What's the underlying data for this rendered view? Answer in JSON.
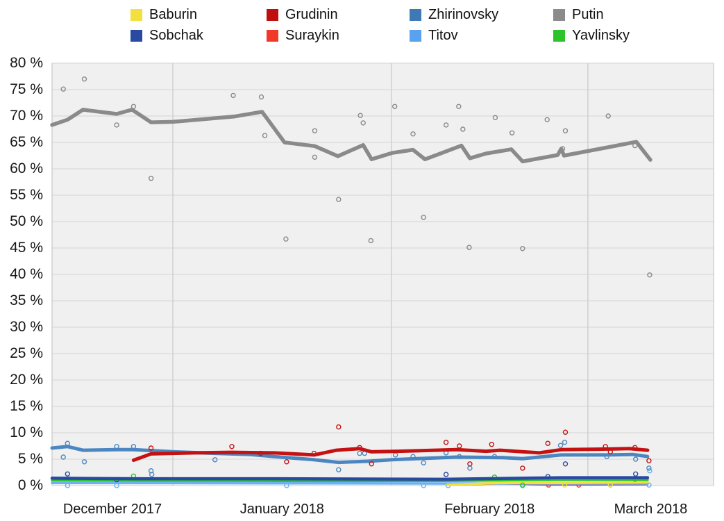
{
  "legend": {
    "items": [
      {
        "label": "Baburin",
        "color": "#f3e03f"
      },
      {
        "label": "Grudinin",
        "color": "#c00d0d"
      },
      {
        "label": "Zhirinovsky",
        "color": "#3c79b5"
      },
      {
        "label": "Putin",
        "color": "#8b8b8b"
      },
      {
        "label": "Sobchak",
        "color": "#2a4aa2"
      },
      {
        "label": "Suraykin",
        "color": "#f03928"
      },
      {
        "label": "Titov",
        "color": "#58a2ef"
      },
      {
        "label": "Yavlinsky",
        "color": "#2cc32c"
      }
    ]
  },
  "chart_data": {
    "type": "scatter",
    "title": "",
    "x_unit": "days from mid-December 2017 to the March 2018 election",
    "x_range_days": [
      0,
      94.2
    ],
    "month_boundary_days": [
      17.2,
      48.3,
      76.3
    ],
    "x_tick_labels": [
      "December 2017",
      "January 2018",
      "February 2018",
      "March 2018"
    ],
    "ylim": [
      0,
      80
    ],
    "y_tick_step": 5,
    "y_tick_labels": [
      "0 %",
      "5 %",
      "10 %",
      "15 %",
      "20 %",
      "25 %",
      "30 %",
      "35 %",
      "40 %",
      "45 %",
      "50 %",
      "55 %",
      "60 %",
      "65 %",
      "70 %",
      "75 %",
      "80 %"
    ],
    "grid": true,
    "legend_position": "top",
    "colors": {
      "plot_background": "#f0f0f0",
      "h_gridline": "#d9d9d9",
      "v_gridline": "#cbcbcb"
    },
    "series": [
      {
        "name": "Suraykin",
        "color": "#f03928",
        "line_width": 2.5,
        "trend": [
          [
            56.3,
            0.1
          ],
          [
            63.8,
            0.35
          ],
          [
            70.7,
            0.15
          ],
          [
            84.8,
            0.2
          ]
        ],
        "points": [
          [
            70.7,
            0.1
          ],
          [
            75.0,
            0.1
          ]
        ]
      },
      {
        "name": "Titov",
        "color": "#6ab2f2",
        "line_width": 3.5,
        "trend": [
          [
            0,
            0.5
          ],
          [
            32.1,
            0.45
          ],
          [
            55.8,
            0.4
          ],
          [
            84.8,
            0.4
          ]
        ],
        "points": [
          [
            2.2,
            0.0
          ],
          [
            9.2,
            0.0
          ],
          [
            33.4,
            0.0
          ],
          [
            52.9,
            0.0
          ],
          [
            56.4,
            0.0
          ],
          [
            67.0,
            0.0
          ],
          [
            79.5,
            0.1
          ],
          [
            85.0,
            0.1
          ],
          [
            85.1,
            2.8
          ]
        ]
      },
      {
        "name": "Baburin",
        "color": "#f0e040",
        "line_width": 3.5,
        "trend": [
          [
            56.3,
            0.15
          ],
          [
            63.8,
            0.5
          ],
          [
            72.7,
            0.5
          ],
          [
            84.8,
            0.65
          ]
        ],
        "points": [
          [
            73.0,
            0.1
          ],
          [
            79.5,
            0.15
          ]
        ]
      },
      {
        "name": "Yavlinsky",
        "color": "#2cc32c",
        "line_width": 3.5,
        "trend": [
          [
            0,
            1.0
          ],
          [
            32.1,
            0.9
          ],
          [
            55.8,
            0.9
          ],
          [
            72.7,
            1.1
          ],
          [
            84.8,
            1.1
          ]
        ],
        "points": [
          [
            11.6,
            1.8
          ],
          [
            63.0,
            1.6
          ],
          [
            67.0,
            0.1
          ],
          [
            83.0,
            1.2
          ]
        ]
      },
      {
        "name": "Sobchak",
        "color": "#2a4aa2",
        "line_width": 4.5,
        "trend": [
          [
            0,
            1.4
          ],
          [
            12.4,
            1.3
          ],
          [
            32.1,
            1.3
          ],
          [
            55.8,
            1.2
          ],
          [
            72.7,
            1.5
          ],
          [
            84.8,
            1.5
          ]
        ],
        "points": [
          [
            2.2,
            2.2
          ],
          [
            9.2,
            1.1
          ],
          [
            56.1,
            2.1
          ],
          [
            70.6,
            1.7
          ],
          [
            73.1,
            4.1
          ],
          [
            83.1,
            2.2
          ]
        ]
      },
      {
        "name": "Zhirinovsky",
        "color": "#4c86c0",
        "line_width": 5,
        "trend": [
          [
            0,
            7.1
          ],
          [
            2.2,
            7.4
          ],
          [
            4.4,
            6.7
          ],
          [
            9.2,
            6.8
          ],
          [
            11.6,
            6.8
          ],
          [
            17.3,
            6.4
          ],
          [
            23.2,
            6.1
          ],
          [
            28.2,
            5.9
          ],
          [
            31.6,
            5.5
          ],
          [
            37.3,
            4.9
          ],
          [
            40.8,
            4.4
          ],
          [
            45.0,
            4.6
          ],
          [
            48.4,
            4.9
          ],
          [
            51.9,
            5.1
          ],
          [
            57.6,
            5.4
          ],
          [
            64.2,
            5.3
          ],
          [
            67.0,
            5.1
          ],
          [
            72.5,
            5.8
          ],
          [
            79.0,
            5.8
          ],
          [
            82.7,
            5.9
          ],
          [
            84.8,
            5.5
          ]
        ],
        "points": [
          [
            1.6,
            5.4
          ],
          [
            2.2,
            8.0
          ],
          [
            4.6,
            4.5
          ],
          [
            9.2,
            7.4
          ],
          [
            11.6,
            7.4
          ],
          [
            14.1,
            2.8
          ],
          [
            14.2,
            2.1
          ],
          [
            23.2,
            4.9
          ],
          [
            40.8,
            3.0
          ],
          [
            43.8,
            6.1
          ],
          [
            44.5,
            6.1
          ],
          [
            48.9,
            5.8
          ],
          [
            51.4,
            5.5
          ],
          [
            52.9,
            4.3
          ],
          [
            56.1,
            6.2
          ],
          [
            58.0,
            5.5
          ],
          [
            59.5,
            3.3
          ],
          [
            63.0,
            5.5
          ],
          [
            72.4,
            7.6
          ],
          [
            73.0,
            8.2
          ],
          [
            79.0,
            5.5
          ],
          [
            83.1,
            5.0
          ],
          [
            85.0,
            3.3
          ]
        ]
      },
      {
        "name": "Grudinin",
        "color": "#c41212",
        "line_width": 5,
        "trend": [
          [
            11.6,
            4.8
          ],
          [
            14.1,
            6.0
          ],
          [
            20.3,
            6.2
          ],
          [
            25.5,
            6.3
          ],
          [
            31.6,
            6.2
          ],
          [
            37.3,
            5.8
          ],
          [
            40.5,
            6.7
          ],
          [
            43.8,
            7.0
          ],
          [
            45.5,
            6.4
          ],
          [
            49.4,
            6.5
          ],
          [
            57.6,
            6.8
          ],
          [
            61.8,
            6.5
          ],
          [
            63.8,
            6.7
          ],
          [
            69.4,
            6.2
          ],
          [
            72.5,
            6.8
          ],
          [
            77.6,
            6.9
          ],
          [
            82.2,
            7.0
          ],
          [
            84.8,
            6.7
          ]
        ],
        "points": [
          [
            14.1,
            7.1
          ],
          [
            25.6,
            7.4
          ],
          [
            29.7,
            6.1
          ],
          [
            33.4,
            4.5
          ],
          [
            37.3,
            6.1
          ],
          [
            40.8,
            11.1
          ],
          [
            43.8,
            7.2
          ],
          [
            45.5,
            4.1
          ],
          [
            56.1,
            8.2
          ],
          [
            58.0,
            7.5
          ],
          [
            59.5,
            4.1
          ],
          [
            62.6,
            7.8
          ],
          [
            67.0,
            3.3
          ],
          [
            70.6,
            8.0
          ],
          [
            73.1,
            10.1
          ],
          [
            78.8,
            7.4
          ],
          [
            79.5,
            6.4
          ],
          [
            83.0,
            7.2
          ],
          [
            85.0,
            4.7
          ]
        ]
      },
      {
        "name": "Putin",
        "color": "#8a8a8a",
        "line_width": 5.5,
        "trend": [
          [
            0,
            68.3
          ],
          [
            2.2,
            69.3
          ],
          [
            4.4,
            71.2
          ],
          [
            9.2,
            70.4
          ],
          [
            11.4,
            71.2
          ],
          [
            14.1,
            68.8
          ],
          [
            17.2,
            68.9
          ],
          [
            25.9,
            69.9
          ],
          [
            29.9,
            70.8
          ],
          [
            33.1,
            65.0
          ],
          [
            37.4,
            64.3
          ],
          [
            40.7,
            62.4
          ],
          [
            44.3,
            64.5
          ],
          [
            45.5,
            61.8
          ],
          [
            48.4,
            63.0
          ],
          [
            51.4,
            63.6
          ],
          [
            53.1,
            61.8
          ],
          [
            58.3,
            64.4
          ],
          [
            59.5,
            62.0
          ],
          [
            61.8,
            62.9
          ],
          [
            65.4,
            63.7
          ],
          [
            67.0,
            61.4
          ],
          [
            72.0,
            62.6
          ],
          [
            72.5,
            63.8
          ],
          [
            72.9,
            62.5
          ],
          [
            83.2,
            65.1
          ],
          [
            85.2,
            61.7
          ]
        ],
        "points": [
          [
            1.6,
            75.1
          ],
          [
            4.6,
            77.0
          ],
          [
            9.2,
            68.3
          ],
          [
            11.6,
            71.8
          ],
          [
            14.1,
            58.2
          ],
          [
            25.8,
            73.9
          ],
          [
            29.8,
            73.6
          ],
          [
            30.3,
            66.3
          ],
          [
            33.3,
            46.7
          ],
          [
            37.4,
            67.2
          ],
          [
            37.4,
            62.2
          ],
          [
            40.8,
            54.2
          ],
          [
            43.9,
            70.1
          ],
          [
            44.3,
            68.7
          ],
          [
            45.4,
            46.4
          ],
          [
            48.8,
            71.8
          ],
          [
            51.4,
            66.6
          ],
          [
            52.9,
            50.8
          ],
          [
            56.1,
            68.3
          ],
          [
            57.9,
            71.8
          ],
          [
            58.5,
            67.5
          ],
          [
            59.4,
            45.1
          ],
          [
            63.1,
            69.7
          ],
          [
            65.5,
            66.8
          ],
          [
            67.0,
            44.9
          ],
          [
            70.5,
            69.3
          ],
          [
            72.7,
            63.8
          ],
          [
            73.1,
            67.2
          ],
          [
            79.2,
            70.0
          ],
          [
            83.0,
            64.4
          ],
          [
            85.1,
            39.9
          ]
        ]
      }
    ]
  }
}
